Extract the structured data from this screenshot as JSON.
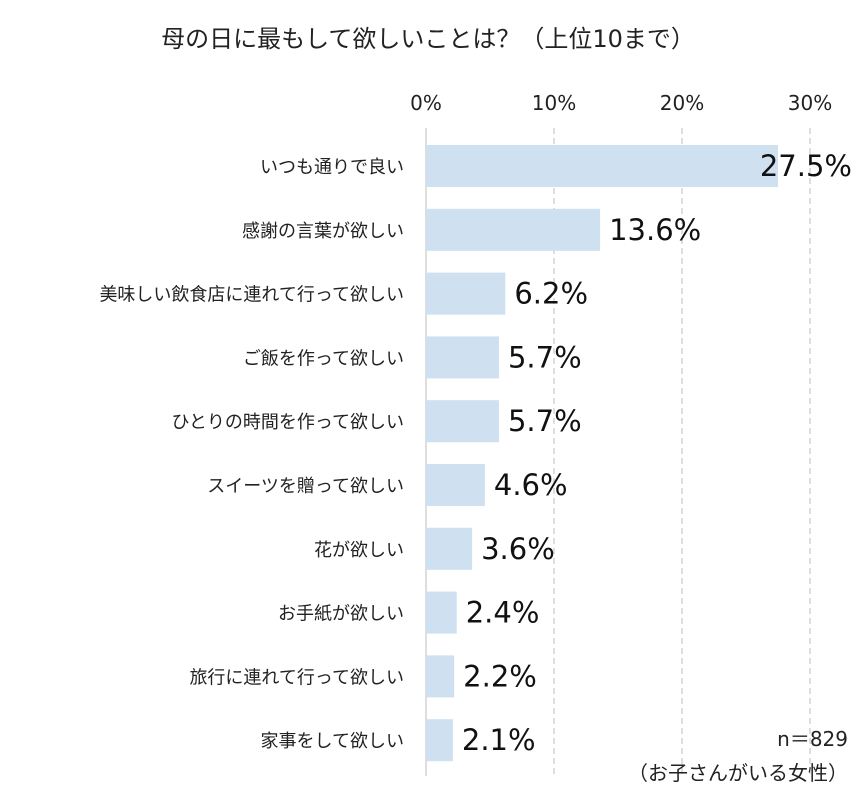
{
  "chart_data": {
    "type": "bar",
    "orientation": "horizontal",
    "title": "母の日に最もして欲しいことは？（上位10まで）",
    "categories": [
      "いつも通りで良い",
      "感謝の言葉が欲しい",
      "美味しい飲食店に連れて行って欲しい",
      "ご飯を作って欲しい",
      "ひとりの時間を作って欲しい",
      "スイーツを贈って欲しい",
      "花が欲しい",
      "お手紙が欲しい",
      "旅行に連れて行って欲しい",
      "家事をして欲しい"
    ],
    "values": [
      27.5,
      13.6,
      6.2,
      5.7,
      5.7,
      4.6,
      3.6,
      2.4,
      2.2,
      2.1
    ],
    "value_labels": [
      "27.5%",
      "13.6%",
      "6.2%",
      "5.7%",
      "5.7%",
      "4.6%",
      "3.6%",
      "2.4%",
      "2.2%",
      "2.1%"
    ],
    "xlim": [
      0,
      30
    ],
    "x_ticks": [
      0,
      10,
      20,
      30
    ],
    "x_tick_labels": [
      "0%",
      "10%",
      "20%",
      "30%"
    ],
    "x_axis_position": "top",
    "grid": true,
    "bar_color": "#cfe0f1",
    "grid_color": "#bdbdbd",
    "notes": {
      "sample": "n＝829",
      "population": "（お子さんがいる女性）"
    }
  }
}
